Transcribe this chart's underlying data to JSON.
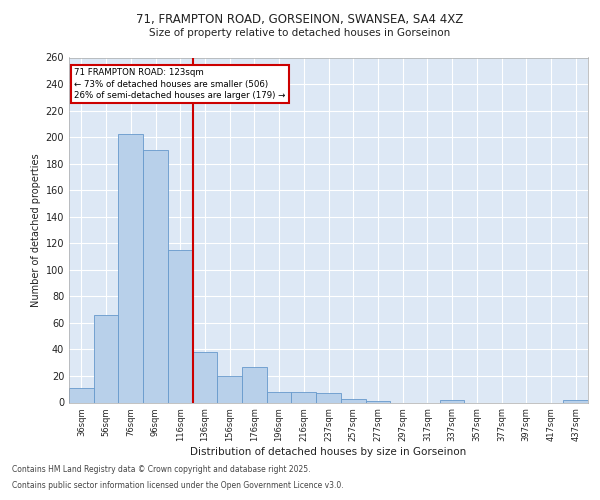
{
  "title_line1": "71, FRAMPTON ROAD, GORSEINON, SWANSEA, SA4 4XZ",
  "title_line2": "Size of property relative to detached houses in Gorseinon",
  "xlabel": "Distribution of detached houses by size in Gorseinon",
  "ylabel": "Number of detached properties",
  "categories": [
    "36sqm",
    "56sqm",
    "76sqm",
    "96sqm",
    "116sqm",
    "136sqm",
    "156sqm",
    "176sqm",
    "196sqm",
    "216sqm",
    "237sqm",
    "257sqm",
    "277sqm",
    "297sqm",
    "317sqm",
    "337sqm",
    "357sqm",
    "377sqm",
    "397sqm",
    "417sqm",
    "437sqm"
  ],
  "values": [
    11,
    66,
    202,
    190,
    115,
    38,
    20,
    27,
    8,
    8,
    7,
    3,
    1,
    0,
    0,
    2,
    0,
    0,
    0,
    0,
    2
  ],
  "bar_color": "#b8d0ea",
  "bar_edge_color": "#6699cc",
  "background_color": "#dde8f5",
  "grid_color": "#ffffff",
  "vline_color": "#cc0000",
  "annotation_text": "71 FRAMPTON ROAD: 123sqm\n← 73% of detached houses are smaller (506)\n26% of semi-detached houses are larger (179) →",
  "annotation_box_color": "#ffffff",
  "annotation_box_edge": "#cc0000",
  "ylim": [
    0,
    260
  ],
  "yticks": [
    0,
    20,
    40,
    60,
    80,
    100,
    120,
    140,
    160,
    180,
    200,
    220,
    240,
    260
  ],
  "footer_line1": "Contains HM Land Registry data © Crown copyright and database right 2025.",
  "footer_line2": "Contains public sector information licensed under the Open Government Licence v3.0.",
  "figsize": [
    6.0,
    5.0
  ],
  "dpi": 100
}
